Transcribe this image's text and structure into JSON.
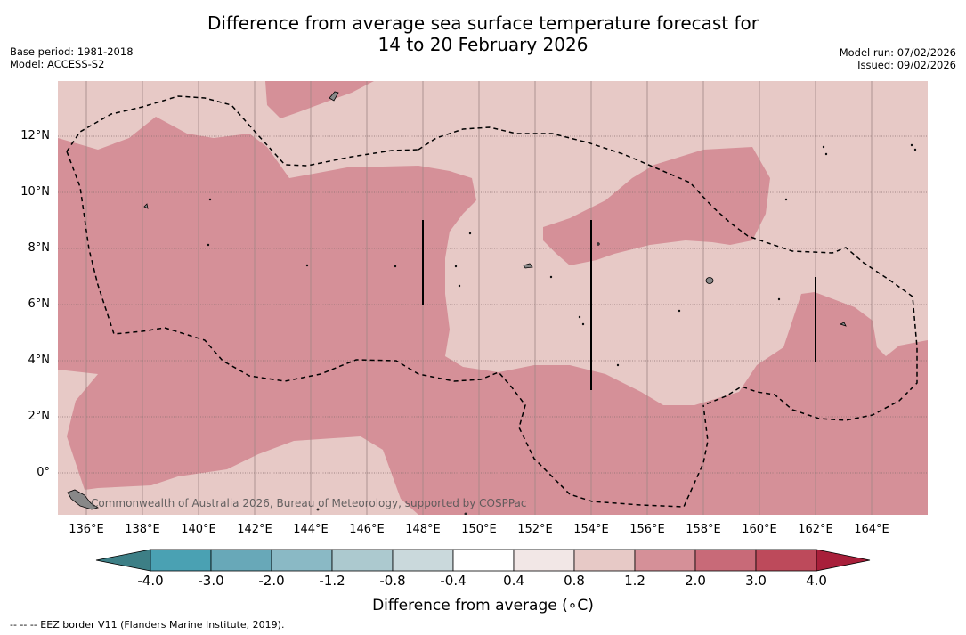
{
  "title": {
    "line1": "Difference from average sea surface temperature forecast for",
    "line2": "14 to 20 February 2026"
  },
  "meta": {
    "base_period": "Base period: 1981-2018",
    "model": "Model: ACCESS-S2",
    "model_run": "Model run: 07/02/2026",
    "issued": "Issued: 09/02/2026"
  },
  "map": {
    "lon_range": [
      135,
      166
    ],
    "lat_range": [
      -1.5,
      14
    ],
    "lat_ticks": [
      "12°N",
      "10°N",
      "8°N",
      "6°N",
      "4°N",
      "2°N",
      "0°"
    ],
    "lon_ticks": [
      "136°E",
      "138°E",
      "140°E",
      "142°E",
      "144°E",
      "146°E",
      "148°E",
      "150°E",
      "152°E",
      "154°E",
      "156°E",
      "158°E",
      "160°E",
      "162°E",
      "164°E"
    ],
    "colors": {
      "anom_0_4_to_0_8": "#efe2e1",
      "anom_0_8_to_1_2": "#e7c9c6",
      "anom_1_2_to_2_0": "#d59098",
      "land": "#888888",
      "grid": "#8a7070"
    },
    "copyright": "Commonwealth of Australia 2026, Bureau of Meteorology, supported by COSPPac"
  },
  "colorbar": {
    "ticks": [
      "-4.0",
      "-3.0",
      "-2.0",
      "-1.2",
      "-0.8",
      "-0.4",
      "0.4",
      "0.8",
      "1.2",
      "2.0",
      "3.0",
      "4.0"
    ],
    "colors": [
      "#3d7f86",
      "#4aa1b3",
      "#68a8b8",
      "#8ab9c5",
      "#acc9cf",
      "#cad9dc",
      "#ffffff",
      "#f2e7e6",
      "#e7c9c6",
      "#d59098",
      "#c86a78",
      "#bd4a5b",
      "#a81f3a"
    ],
    "title": "Difference from average (∘C)"
  },
  "footnote": "--  --  -- EEZ border V11 (Flanders Marine Institute, 2019)."
}
